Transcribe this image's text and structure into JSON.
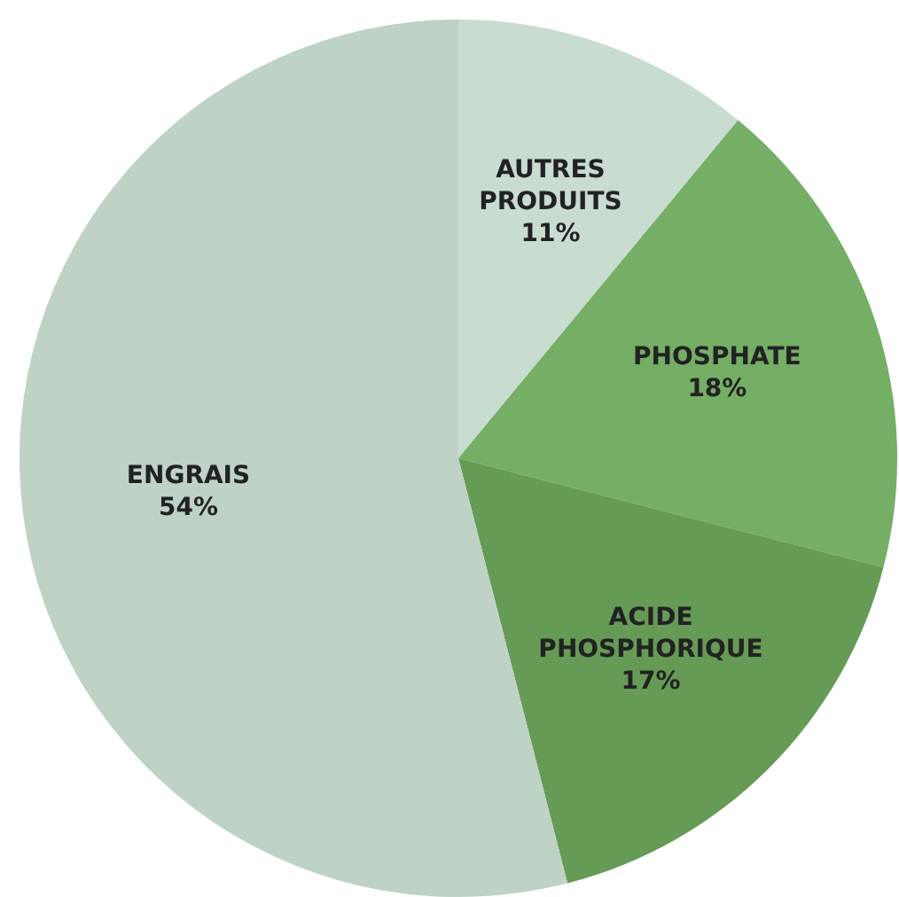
{
  "chart_data": {
    "type": "pie",
    "categories": [
      "AUTRES PRODUITS",
      "PHOSPHATE",
      "ACIDE PHOSPHORIQUE",
      "ENGRAIS"
    ],
    "values": [
      11,
      18,
      17,
      54
    ],
    "value_labels": [
      "11%",
      "18%",
      "17%",
      "54%"
    ],
    "colors": [
      "#c9dcd0",
      "#75ae65",
      "#669b56",
      "#bed3c5"
    ],
    "legend": false
  }
}
